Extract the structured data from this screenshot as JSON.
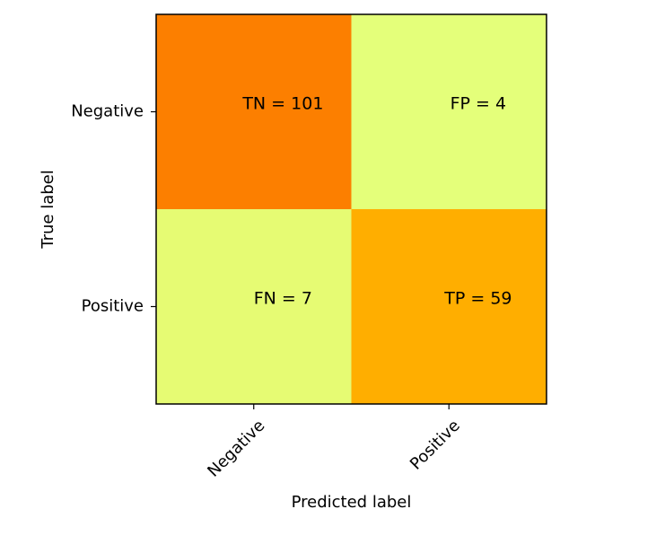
{
  "chart_data": {
    "type": "heatmap",
    "title": "",
    "xlabel": "Predicted label",
    "ylabel": "True label",
    "x_categories": [
      "Negative",
      "Positive"
    ],
    "y_categories": [
      "Negative",
      "Positive"
    ],
    "values": [
      [
        101,
        4
      ],
      [
        7,
        59
      ]
    ],
    "cell_labels": [
      [
        "TN = 101",
        "FP = 4"
      ],
      [
        "FN = 7",
        "TP = 59"
      ]
    ],
    "colormap": "Wistia",
    "colors": {
      "low": "#e4ff7a",
      "mid": "#ffb000",
      "high": "#fc7f00",
      "border": "#000000"
    },
    "grid": false,
    "legend": "none"
  }
}
